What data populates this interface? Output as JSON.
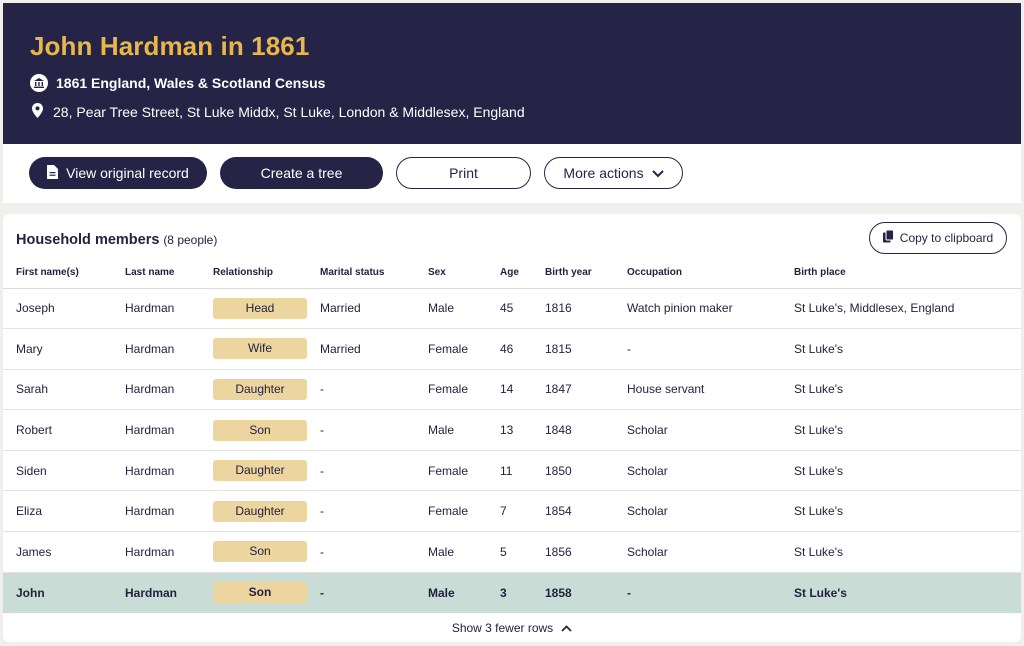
{
  "header": {
    "title": "John Hardman in 1861",
    "census": "1861 England, Wales & Scotland Census",
    "address": "28, Pear Tree Street, St Luke Middx, St Luke, London & Middlesex, England"
  },
  "actions": {
    "view_original": "View original record",
    "create_tree": "Create a tree",
    "print": "Print",
    "more_actions": "More actions"
  },
  "household": {
    "title": "Household members",
    "count": "(8 people)",
    "copy_label": "Copy to clipboard",
    "columns": [
      "First name(s)",
      "Last name",
      "Relationship",
      "Marital status",
      "Sex",
      "Age",
      "Birth year",
      "Occupation",
      "Birth place"
    ],
    "rows": [
      {
        "first": "Joseph",
        "last": "Hardman",
        "relationship": "Head",
        "marital": "Married",
        "sex": "Male",
        "age": "45",
        "birth_year": "1816",
        "occupation": "Watch pinion maker",
        "birth_place": "St Luke's, Middlesex, England"
      },
      {
        "first": "Mary",
        "last": "Hardman",
        "relationship": "Wife",
        "marital": "Married",
        "sex": "Female",
        "age": "46",
        "birth_year": "1815",
        "occupation": "-",
        "birth_place": "St Luke's"
      },
      {
        "first": "Sarah",
        "last": "Hardman",
        "relationship": "Daughter",
        "marital": "-",
        "sex": "Female",
        "age": "14",
        "birth_year": "1847",
        "occupation": "House servant",
        "birth_place": "St Luke's"
      },
      {
        "first": "Robert",
        "last": "Hardman",
        "relationship": "Son",
        "marital": "-",
        "sex": "Male",
        "age": "13",
        "birth_year": "1848",
        "occupation": "Scholar",
        "birth_place": "St Luke's"
      },
      {
        "first": "Siden",
        "last": "Hardman",
        "relationship": "Daughter",
        "marital": "-",
        "sex": "Female",
        "age": "11",
        "birth_year": "1850",
        "occupation": "Scholar",
        "birth_place": "St Luke's"
      },
      {
        "first": "Eliza",
        "last": "Hardman",
        "relationship": "Daughter",
        "marital": "-",
        "sex": "Female",
        "age": "7",
        "birth_year": "1854",
        "occupation": "Scholar",
        "birth_place": "St Luke's"
      },
      {
        "first": "James",
        "last": "Hardman",
        "relationship": "Son",
        "marital": "-",
        "sex": "Male",
        "age": "5",
        "birth_year": "1856",
        "occupation": "Scholar",
        "birth_place": "St Luke's"
      },
      {
        "first": "John",
        "last": "Hardman",
        "relationship": "Son",
        "marital": "-",
        "sex": "Male",
        "age": "3",
        "birth_year": "1858",
        "occupation": "-",
        "birth_place": "St Luke's",
        "highlighted": true
      }
    ],
    "toggle_rows": "Show 3 fewer rows"
  },
  "colors": {
    "header_bg": "#252447",
    "title": "#e8b74b",
    "badge": "#edd5a0",
    "highlight_row": "#c9ddd6"
  },
  "icons": [
    "census-icon",
    "location-pin-icon",
    "document-icon",
    "chevron-down-icon",
    "clipboard-icon",
    "chevron-up-icon"
  ]
}
